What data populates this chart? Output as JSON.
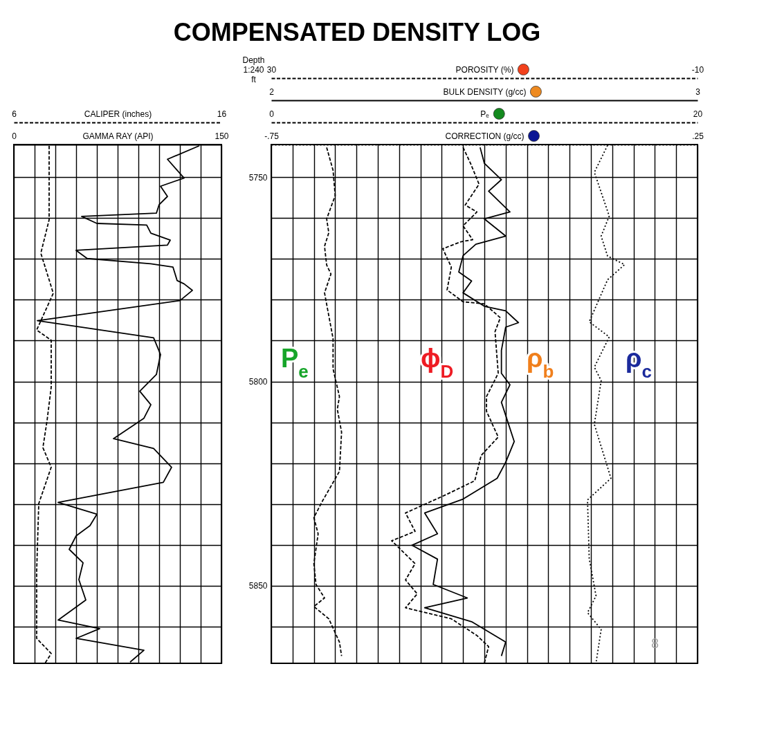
{
  "chart_data": [
    {
      "type": "line",
      "title": "COMPENSATED DENSITY LOG",
      "xlabel": "GAMMA RAY (API)",
      "x2label": "CALIPER (inches)",
      "xlim": [
        0,
        150
      ],
      "xticks": [
        0,
        {
          "value": 15,
          "label": null
        },
        {
          "value": 30,
          "label": null
        },
        {
          "value": 45,
          "label": null
        },
        {
          "value": 60,
          "label": null
        },
        {
          "value": 75,
          "label": null
        },
        {
          "value": 90,
          "label": null
        },
        {
          "value": 105,
          "label": null
        },
        {
          "value": 120,
          "label": null
        },
        {
          "value": 135,
          "label": null
        },
        150
      ],
      "x2lim": [
        6,
        16
      ],
      "x2ticks": [
        6,
        16
      ],
      "ylim": [
        5869,
        5742
      ],
      "yticks": [
        5750,
        {
          "value": 5760,
          "label": null
        },
        {
          "value": 5770,
          "label": null
        },
        {
          "value": 5780,
          "label": null
        },
        {
          "value": 5790,
          "label": null
        },
        5800,
        {
          "value": 5810,
          "label": null
        },
        {
          "value": 5820,
          "label": null
        },
        {
          "value": 5830,
          "label": null
        },
        {
          "value": 5840,
          "label": null
        },
        5850,
        {
          "value": 5860,
          "label": null
        }
      ],
      "grid": true,
      "tick_labels": "x",
      "series": [
        {
          "axis": "x2",
          "color": "#000000",
          "line_style": "dashed",
          "x": [
            7.7,
            7.7,
            7.3,
            7.9,
            7.1,
            7.8,
            7.8,
            7.6,
            7.4,
            7.8,
            7.2,
            7.1,
            7.1,
            7.8,
            7.5
          ],
          "values": [
            5742.3,
            5760.4,
            5768.6,
            5778.4,
            5787.4,
            5789.9,
            5801.4,
            5809.6,
            5816.2,
            5821,
            5829.9,
            5846.4,
            5862.9,
            5866.6,
            5869
          ]
        },
        {
          "color": "#000000",
          "line_style": "solid",
          "x": [
            134,
            111,
            123,
            106,
            111,
            105,
            103,
            49,
            60,
            96,
            99,
            113,
            111,
            45,
            53,
            99,
            115,
            118,
            123,
            129,
            120,
            17,
            101,
            106,
            103,
            91,
            99,
            94,
            72,
            101,
            114,
            108,
            32,
            60,
            55,
            45,
            40,
            50,
            47,
            52,
            32,
            62,
            45,
            94,
            84
          ],
          "values": [
            5742.3,
            5745.6,
            5750.2,
            5752.2,
            5754.7,
            5756.7,
            5758.8,
            5759.6,
            5761.3,
            5761.7,
            5763.7,
            5765.4,
            5766.6,
            5767.9,
            5769.9,
            5771.2,
            5772,
            5775.3,
            5776.1,
            5777.7,
            5780.2,
            5785.1,
            5789.3,
            5793.4,
            5798.3,
            5802.4,
            5805.7,
            5809,
            5814,
            5816.4,
            5821,
            5824.7,
            5829.6,
            5832.5,
            5835.3,
            5837.8,
            5841.1,
            5844.4,
            5848.5,
            5853.5,
            5858.4,
            5860.5,
            5862.9,
            5865.8,
            5868.7
          ]
        }
      ]
    },
    {
      "type": "line",
      "ylabel": "Depth 1:240 ft",
      "xlabel": "POROSITY (%)",
      "x2label": "BULK DENSITY (g/cc)",
      "xlim": [
        30,
        -10
      ],
      "xticks": [
        30,
        {
          "value": 28,
          "label": null
        },
        {
          "value": 26,
          "label": null
        },
        {
          "value": 24,
          "label": null
        },
        {
          "value": 22,
          "label": null
        },
        {
          "value": 20,
          "label": null
        },
        {
          "value": 18,
          "label": null
        },
        {
          "value": 16,
          "label": null
        },
        {
          "value": 14,
          "label": null
        },
        {
          "value": 12,
          "label": null
        },
        {
          "value": 10,
          "label": null
        },
        {
          "value": 8,
          "label": null
        },
        {
          "value": 6,
          "label": null
        },
        {
          "value": 4,
          "label": null
        },
        {
          "value": 2,
          "label": null
        },
        {
          "value": 0,
          "label": null
        },
        {
          "value": -2,
          "label": null
        },
        {
          "value": -4,
          "label": null
        },
        {
          "value": -6,
          "label": null
        },
        {
          "value": -8,
          "label": null
        },
        -10
      ],
      "x2lim": [
        2,
        3
      ],
      "x2ticks": [
        2,
        3
      ],
      "ylim": [
        5869,
        5742
      ],
      "yticks": [
        5750,
        {
          "value": 5760,
          "label": null
        },
        {
          "value": 5770,
          "label": null
        },
        {
          "value": 5780,
          "label": null
        },
        {
          "value": 5790,
          "label": null
        },
        5800,
        {
          "value": 5810,
          "label": null
        },
        {
          "value": 5820,
          "label": null
        },
        {
          "value": 5830,
          "label": null
        },
        {
          "value": 5840,
          "label": null
        },
        5850,
        {
          "value": 5860,
          "label": null
        }
      ],
      "grid": true,
      "series": [
        {
          "color": "#000000",
          "line_style": "dashed",
          "x": [
            12.0,
            11.3,
            10.5,
            11.8,
            10.7,
            12.0,
            11.1,
            12.2,
            13.9,
            13.1,
            13.5,
            12.0,
            10.0,
            8.5,
            9.0,
            8.7,
            9.8,
            9.8,
            8.7,
            10.3,
            10.9,
            13.5,
            17.4,
            16.5,
            18.7,
            16.5,
            17.4,
            16.3,
            17.4,
            13.1,
            10.7,
            9.6,
            10.0
          ],
          "values": [
            5742.7,
            5746.6,
            5751.7,
            5756.8,
            5758.5,
            5761.9,
            5765.3,
            5765.8,
            5767.5,
            5772,
            5777.6,
            5780.5,
            5781,
            5784.4,
            5787.8,
            5798,
            5803.7,
            5807.3,
            5813.6,
            5818.1,
            5824.3,
            5827.6,
            5832.2,
            5836.7,
            5839,
            5844.6,
            5848.6,
            5852,
            5855.4,
            5858.1,
            5862.2,
            5864.9,
            5868.9
          ]
        },
        {
          "axis": "x2",
          "color": "#000000",
          "line_style": "solid",
          "x": [
            2.49,
            2.5,
            2.54,
            2.51,
            2.56,
            2.5,
            2.55,
            2.48,
            2.45,
            2.44,
            2.47,
            2.45,
            2.5,
            2.55,
            2.58,
            2.55,
            2.54,
            2.54,
            2.56,
            2.54,
            2.57,
            2.55,
            2.53,
            2.45,
            2.36,
            2.39,
            2.33,
            2.39,
            2.38,
            2.46,
            2.36,
            2.47,
            2.55,
            2.54
          ],
          "values": [
            5742.7,
            5746.6,
            5750.6,
            5753.4,
            5758.5,
            5760.2,
            5764.4,
            5766.4,
            5769.2,
            5773.2,
            5775.4,
            5778.3,
            5781.6,
            5782.7,
            5785.6,
            5786.7,
            5792.4,
            5798,
            5800.8,
            5805.1,
            5814.7,
            5819.8,
            5823.7,
            5828.8,
            5832.2,
            5837.3,
            5840.1,
            5843.5,
            5849.7,
            5853,
            5855.4,
            5858.8,
            5863.8,
            5867.2
          ]
        }
      ],
      "annotations": [
        "P$_{e}$",
        "ϕ$_{D}$",
        "ρ$_{b}$",
        "ρ$_{c}$",
        "8"
      ]
    },
    {
      "type": "line",
      "xlabel": "Pₑ",
      "xlim": [
        0,
        20
      ],
      "xticks": [
        0,
        20
      ],
      "ylim": [
        5869,
        5742
      ],
      "tick_labels": "x",
      "series": [
        {
          "color": "#000000",
          "line_style": "dashed",
          "x": [
            2.6,
            2.9,
            3.0,
            2.6,
            2.7,
            2.5,
            2.6,
            2.8,
            2.5,
            2.7,
            2.9,
            2.9,
            3.2,
            3.1,
            3.3,
            3.2,
            2.4,
            2.0,
            2.2,
            2.0,
            2.1,
            2.5,
            2.0,
            2.7,
            3.2,
            3.3
          ],
          "values": [
            5742.7,
            5748.3,
            5754.5,
            5760.2,
            5763.6,
            5766.9,
            5771.5,
            5773.7,
            5778.3,
            5783.9,
            5789.5,
            5796.9,
            5803.7,
            5806.8,
            5812.4,
            5822,
            5829.3,
            5833.3,
            5837.3,
            5844.6,
            5849.7,
            5853,
            5855.1,
            5858.1,
            5863.8,
            5867.2
          ]
        }
      ]
    },
    {
      "type": "line",
      "xlabel": "CORRECTION (g/cc)",
      "xlim": [
        -0.75,
        0.25
      ],
      "xticks": [
        {
          "value": -0.75,
          "label": "-.75"
        },
        {
          "value": 0.25,
          "label": ".25"
        }
      ],
      "ylim": [
        5869,
        5742
      ],
      "tick_labels": "x",
      "series": [
        {
          "color": "#000000",
          "line_style": "dotted",
          "x": [
            0.039,
            0.008,
            0.043,
            0.024,
            0.039,
            0.079,
            0.039,
            -0.004,
            0.043,
            0.008,
            0.024,
            0.008,
            0.047,
            -0.008,
            -0.004,
            0.012,
            -0.008,
            0.024,
            0.012
          ],
          "values": [
            5742.2,
            5748.8,
            5759.5,
            5764.4,
            5769.3,
            5771.4,
            5775.1,
            5785.4,
            5789.1,
            5796.5,
            5799.8,
            5810.5,
            5823.7,
            5829,
            5843.4,
            5852.5,
            5856.6,
            5860.7,
            5868.9
          ]
        }
      ]
    }
  ]
}
